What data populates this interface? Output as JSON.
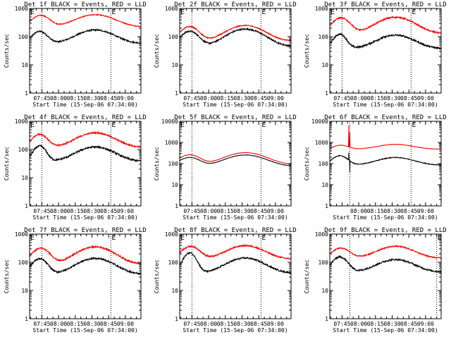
{
  "figure": {
    "title_suffix": " BLACK = Events, RED = LLD",
    "xlabel": "Start Time (15-Sep-06 07:34:00)",
    "ylabel": "Counts/sec",
    "flag_marker": "E",
    "colors": {
      "events": "#000000",
      "lld": "#ff0000",
      "axes": "#000000"
    }
  },
  "chart_data": [
    {
      "type": "line",
      "title": "Det 1f BLACK = Events, RED = LLD",
      "xlabel": "Start Time (15-Sep-06 07:34:00)",
      "ylabel": "Counts/sec",
      "yscale": "log",
      "ylim": [
        1,
        1000
      ],
      "yticks": [
        1,
        10,
        100,
        1000
      ],
      "yticklabels": [
        "1",
        "10",
        "100",
        "1000"
      ],
      "xlim": [
        "07:34",
        "09:14"
      ],
      "xticks": [
        "07:45",
        "08:00",
        "08:15",
        "08:30",
        "08:45",
        "09:00"
      ],
      "vlines": [
        "07:45",
        "08:47"
      ],
      "flag_times": [
        "07:34",
        "08:47"
      ],
      "series": [
        {
          "name": "Events",
          "color": "#000000",
          "base": 58,
          "peaks": [
            {
              "t": "07:43",
              "amp": 95,
              "w": 6
            },
            {
              "t": "08:33",
              "amp": 115,
              "w": 14
            }
          ],
          "noise": 0.06
        },
        {
          "name": "LLD",
          "color": "#ff0000",
          "base": 220,
          "peaks": [
            {
              "t": "07:44",
              "amp": 350,
              "w": 7
            },
            {
              "t": "08:33",
              "amp": 380,
              "w": 15
            }
          ],
          "noise": 0.035
        }
      ]
    },
    {
      "type": "line",
      "title": "Det 2f BLACK = Events, RED = LLD",
      "xlabel": "Start Time (15-Sep-06 07:34:00)",
      "ylabel": "Counts/sec",
      "yscale": "log",
      "ylim": [
        1,
        1000
      ],
      "yticks": [
        1,
        10,
        100,
        1000
      ],
      "yticklabels": [
        "1",
        "10",
        "100",
        "1000"
      ],
      "xlim": [
        "07:34",
        "09:14"
      ],
      "xticks": [
        "07:45",
        "08:00",
        "08:15",
        "08:30",
        "08:45",
        "09:00"
      ],
      "vlines": [
        "07:45",
        "08:47"
      ],
      "flag_times": [
        "07:34",
        "08:47"
      ],
      "series": [
        {
          "name": "Events",
          "color": "#000000",
          "base": 45,
          "peaks": [
            {
              "t": "07:43",
              "amp": 110,
              "w": 7
            },
            {
              "t": "08:33",
              "amp": 140,
              "w": 14
            }
          ],
          "noise": 0.06
        },
        {
          "name": "LLD",
          "color": "#ff0000",
          "base": 70,
          "peaks": [
            {
              "t": "07:43",
              "amp": 160,
              "w": 7
            },
            {
              "t": "08:33",
              "amp": 180,
              "w": 14
            }
          ],
          "noise": 0.04
        }
      ]
    },
    {
      "type": "line",
      "title": "Det 3f BLACK = Events, RED = LLD",
      "xlabel": "Start Time (15-Sep-06 07:34:00)",
      "ylabel": "Counts/sec",
      "yscale": "log",
      "ylim": [
        1,
        1000
      ],
      "yticks": [
        1,
        10,
        100,
        1000
      ],
      "yticklabels": [
        "1",
        "10",
        "100",
        "1000"
      ],
      "xlim": [
        "07:34",
        "09:14"
      ],
      "xticks": [
        "07:45",
        "08:00",
        "08:15",
        "08:30",
        "08:45",
        "09:00"
      ],
      "vlines": [
        "07:45",
        "08:47"
      ],
      "flag_times": [
        "07:34",
        "08:47"
      ],
      "series": [
        {
          "name": "Events",
          "color": "#000000",
          "base": 38,
          "peaks": [
            {
              "t": "07:43",
              "amp": 85,
              "w": 5
            },
            {
              "t": "08:33",
              "amp": 75,
              "w": 14
            }
          ],
          "noise": 0.08
        },
        {
          "name": "LLD",
          "color": "#ff0000",
          "base": 130,
          "peaks": [
            {
              "t": "07:44",
              "amp": 330,
              "w": 7
            },
            {
              "t": "08:33",
              "amp": 360,
              "w": 14
            }
          ],
          "noise": 0.06
        }
      ]
    },
    {
      "type": "line",
      "title": "Det 4f BLACK = Events, RED = LLD",
      "xlabel": "Start Time (15-Sep-06 07:34:00)",
      "ylabel": "Counts/sec",
      "yscale": "log",
      "ylim": [
        1,
        1000
      ],
      "yticks": [
        1,
        10,
        100,
        1000
      ],
      "yticklabels": [
        "1",
        "10",
        "100",
        "1000"
      ],
      "xlim": [
        "07:34",
        "09:14"
      ],
      "xticks": [
        "07:45",
        "08:00",
        "08:15",
        "08:30",
        "08:45",
        "09:00"
      ],
      "vlines": [
        "07:45",
        "08:47"
      ],
      "flag_times": [
        "07:34",
        "08:47"
      ],
      "series": [
        {
          "name": "Events",
          "color": "#000000",
          "base": 38,
          "peaks": [
            {
              "t": "07:43",
              "amp": 95,
              "w": 5
            },
            {
              "t": "08:33",
              "amp": 85,
              "w": 14
            }
          ],
          "noise": 0.08
        },
        {
          "name": "LLD",
          "color": "#ff0000",
          "base": 120,
          "peaks": [
            {
              "t": "07:43",
              "amp": 230,
              "w": 6
            },
            {
              "t": "08:33",
              "amp": 270,
              "w": 14
            }
          ],
          "noise": 0.06
        }
      ]
    },
    {
      "type": "line",
      "title": "Det 5f BLACK = Events, RED = LLD",
      "xlabel": "Start Time (15-Sep-06 07:34:00)",
      "ylabel": "Counts/sec",
      "yscale": "log",
      "ylim": [
        1,
        10000
      ],
      "yticks": [
        1,
        10,
        100,
        1000,
        10000
      ],
      "yticklabels": [
        "1",
        "10",
        "100",
        "1000",
        "10000"
      ],
      "xlim": [
        "07:34",
        "09:14"
      ],
      "xticks": [
        "07:45",
        "08:00",
        "08:15",
        "08:30",
        "08:45",
        "09:00"
      ],
      "vlines": [
        "07:45",
        "08:47"
      ],
      "flag_times": [
        "07:34",
        "08:47"
      ],
      "series": [
        {
          "name": "Events",
          "color": "#000000",
          "base": 75,
          "peaks": [
            {
              "t": "07:43",
              "amp": 120,
              "w": 8
            },
            {
              "t": "08:33",
              "amp": 180,
              "w": 15
            }
          ],
          "noise": 0.02
        },
        {
          "name": "LLD",
          "color": "#ff0000",
          "base": 90,
          "peaks": [
            {
              "t": "07:43",
              "amp": 170,
              "w": 8
            },
            {
              "t": "08:33",
              "amp": 240,
              "w": 15
            }
          ],
          "noise": 0.02
        }
      ]
    },
    {
      "type": "line",
      "title": "Det 6f BLACK = Events, RED = LLD",
      "xlabel": "Start Time (15-Sep-06 07:34:00)",
      "ylabel": "Counts/sec",
      "yscale": "log",
      "ylim": [
        1,
        10000
      ],
      "yticks": [
        1,
        10,
        100,
        1000,
        10000
      ],
      "yticklabels": [
        "1",
        "10",
        "100",
        "1000",
        "10000"
      ],
      "xlim": [
        "07:34",
        "09:14"
      ],
      "xticks": [
        "08:00",
        "08:15",
        "08:30",
        "08:45",
        "09:00"
      ],
      "vlines": [
        "07:52",
        "08:47"
      ],
      "flag_times": [
        "08:47"
      ],
      "series": [
        {
          "name": "Events",
          "color": "#000000",
          "base": 85,
          "peaks": [
            {
              "t": "07:43",
              "amp": 150,
              "w": 6
            },
            {
              "t": "08:33",
              "amp": 110,
              "w": 14
            }
          ],
          "noise": 0.04,
          "spikes": [
            {
              "t": "07:51",
              "v": 330
            },
            {
              "t": "07:52",
              "v": 40
            }
          ]
        },
        {
          "name": "LLD",
          "color": "#ff0000",
          "base": 480,
          "peaks": [
            {
              "t": "07:44",
              "amp": 260,
              "w": 6
            },
            {
              "t": "08:33",
              "amp": 330,
              "w": 14
            }
          ],
          "noise": 0.02,
          "spikes": [
            {
              "t": "07:51",
              "v": 6500
            },
            {
              "t": "07:52",
              "v": 3000
            }
          ]
        }
      ]
    },
    {
      "type": "line",
      "title": "Det 7f BLACK = Events, RED = LLD",
      "xlabel": "Start Time (15-Sep-06 07:34:00)",
      "ylabel": "Counts/sec",
      "yscale": "log",
      "ylim": [
        1,
        1000
      ],
      "yticks": [
        1,
        10,
        100,
        1000
      ],
      "yticklabels": [
        "1",
        "10",
        "100",
        "1000"
      ],
      "xlim": [
        "07:34",
        "09:14"
      ],
      "xticks": [
        "07:45",
        "08:00",
        "08:15",
        "08:30",
        "08:45",
        "09:00"
      ],
      "vlines": [
        "07:45",
        "08:47"
      ],
      "flag_times": [
        "07:34",
        "08:47"
      ],
      "series": [
        {
          "name": "Events",
          "color": "#000000",
          "base": 38,
          "peaks": [
            {
              "t": "07:43",
              "amp": 95,
              "w": 6
            },
            {
              "t": "08:33",
              "amp": 100,
              "w": 14
            }
          ],
          "noise": 0.07
        },
        {
          "name": "LLD",
          "color": "#ff0000",
          "base": 85,
          "peaks": [
            {
              "t": "07:44",
              "amp": 230,
              "w": 7
            },
            {
              "t": "08:33",
              "amp": 270,
              "w": 14
            }
          ],
          "noise": 0.06
        }
      ]
    },
    {
      "type": "line",
      "title": "Det 8f BLACK = Events, RED = LLD",
      "xlabel": "Start Time (15-Sep-06 07:34:00)",
      "ylabel": "Counts/sec",
      "yscale": "log",
      "ylim": [
        1,
        1000
      ],
      "yticks": [
        1,
        10,
        100,
        1000
      ],
      "yticklabels": [
        "1",
        "10",
        "100",
        "1000"
      ],
      "xlim": [
        "07:34",
        "09:14"
      ],
      "xticks": [
        "07:45",
        "08:00",
        "08:15",
        "08:30",
        "08:45",
        "09:00"
      ],
      "vlines": [
        "07:45",
        "08:47"
      ],
      "flag_times": [
        "07:34",
        "08:47"
      ],
      "series": [
        {
          "name": "Events",
          "color": "#000000",
          "base": 42,
          "peaks": [
            {
              "t": "07:43",
              "amp": 175,
              "w": 5
            },
            {
              "t": "08:33",
              "amp": 100,
              "w": 14
            }
          ],
          "noise": 0.07
        },
        {
          "name": "LLD",
          "color": "#ff0000",
          "base": 130,
          "peaks": [
            {
              "t": "07:44",
              "amp": 240,
              "w": 7
            },
            {
              "t": "08:33",
              "amp": 260,
              "w": 14
            }
          ],
          "noise": 0.06
        }
      ]
    },
    {
      "type": "line",
      "title": "Det 9f BLACK = Events, RED = LLD",
      "xlabel": "Start Time (15-Sep-06 07:34:00)",
      "ylabel": "Counts/sec",
      "yscale": "log",
      "ylim": [
        1,
        1000
      ],
      "yticks": [
        1,
        10,
        100,
        1000
      ],
      "yticklabels": [
        "1",
        "10",
        "100",
        "1000"
      ],
      "xlim": [
        "07:34",
        "09:14"
      ],
      "xticks": [
        "07:45",
        "08:00",
        "08:15",
        "08:30",
        "08:45",
        "09:00"
      ],
      "vlines": [
        "07:52",
        "09:10"
      ],
      "flag_times": [
        "09:10"
      ],
      "series": [
        {
          "name": "Events",
          "color": "#000000",
          "base": 45,
          "peaks": [
            {
              "t": "07:43",
              "amp": 110,
              "w": 6
            },
            {
              "t": "08:33",
              "amp": 80,
              "w": 14
            }
          ],
          "noise": 0.07
        },
        {
          "name": "LLD",
          "color": "#ff0000",
          "base": 140,
          "peaks": [
            {
              "t": "07:44",
              "amp": 180,
              "w": 7
            },
            {
              "t": "08:33",
              "amp": 230,
              "w": 14
            }
          ],
          "noise": 0.05
        }
      ]
    }
  ]
}
